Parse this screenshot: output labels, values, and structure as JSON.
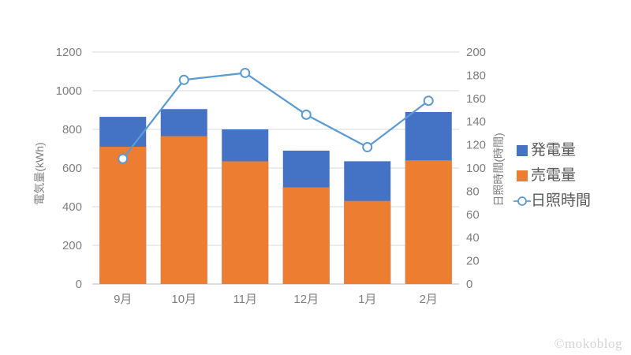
{
  "watermark": "©mokoblog",
  "colors": {
    "background": "#FFFFFF",
    "generation_blue": "#4472C4",
    "sold_orange": "#ED7D31",
    "sunshine_line_blue": "#5B9BD5",
    "gridline": "#D9D9D9",
    "axis_line": "#BFBFBF",
    "axis_text": "#7F7F7F",
    "legend_text": "#595959",
    "watermark_text": "#D4D4D4",
    "marker_fill": "#FFFFFF"
  },
  "chart_data": {
    "type": "bar",
    "subtype": "overlap-bars-with-line",
    "title": "",
    "categories": [
      "9月",
      "10月",
      "11月",
      "12月",
      "1月",
      "2月"
    ],
    "series": [
      {
        "name": "発電量",
        "type": "bar",
        "axis": "left",
        "color": "#4472C4",
        "values": [
          865,
          905,
          800,
          690,
          635,
          890
        ]
      },
      {
        "name": "売電量",
        "type": "bar",
        "axis": "left",
        "color": "#ED7D31",
        "values": [
          710,
          765,
          635,
          500,
          430,
          640
        ]
      },
      {
        "name": "日照時間",
        "type": "line",
        "axis": "right",
        "color": "#5B9BD5",
        "marker": "open-circle",
        "values": [
          108,
          176,
          182,
          146,
          118,
          158
        ]
      }
    ],
    "left_axis": {
      "title": "電気量(kWh)",
      "min": 0,
      "max": 1200,
      "ticks": [
        0,
        200,
        400,
        600,
        800,
        1000,
        1200
      ]
    },
    "right_axis": {
      "title": "日照時間(時間)",
      "min": 0,
      "max": 200,
      "ticks": [
        0,
        20,
        40,
        60,
        80,
        100,
        120,
        140,
        160,
        180,
        200
      ]
    },
    "grid": "horizontal",
    "legend_position": "right"
  }
}
